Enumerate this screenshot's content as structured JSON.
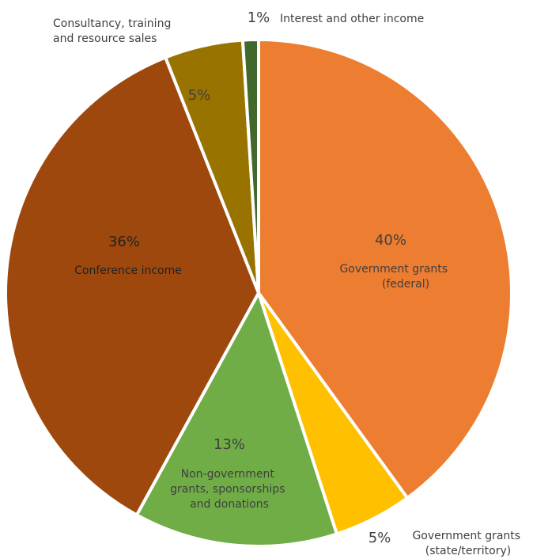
{
  "chart_data": {
    "type": "pie",
    "slices": [
      {
        "value": 40,
        "percent_label": "40%",
        "label_lines": [
          "Government grants",
          "(federal)"
        ],
        "color": "#ED7D31",
        "label_side": "inside"
      },
      {
        "value": 5,
        "percent_label": "5%",
        "label_lines": [
          "Government grants",
          "(state/territory)"
        ],
        "color": "#FFC000",
        "label_side": "outside"
      },
      {
        "value": 13,
        "percent_label": "13%",
        "label_lines": [
          "Non-government",
          "grants, sponsorships",
          "and donations"
        ],
        "color": "#70AD47",
        "label_side": "inside"
      },
      {
        "value": 36,
        "percent_label": "36%",
        "label_lines": [
          "Conference income"
        ],
        "color": "#9E480E",
        "label_side": "inside"
      },
      {
        "value": 5,
        "percent_label": "5%",
        "label_lines": [
          "Consultancy, training",
          "and resource sales"
        ],
        "color": "#997300",
        "label_side": "outside"
      },
      {
        "value": 1,
        "percent_label": "1%",
        "label_lines": [
          "Interest and other income"
        ],
        "color": "#43682B",
        "label_side": "outside"
      }
    ],
    "start_angle": "12 o'clock",
    "direction": "clockwise",
    "legend": "none"
  }
}
